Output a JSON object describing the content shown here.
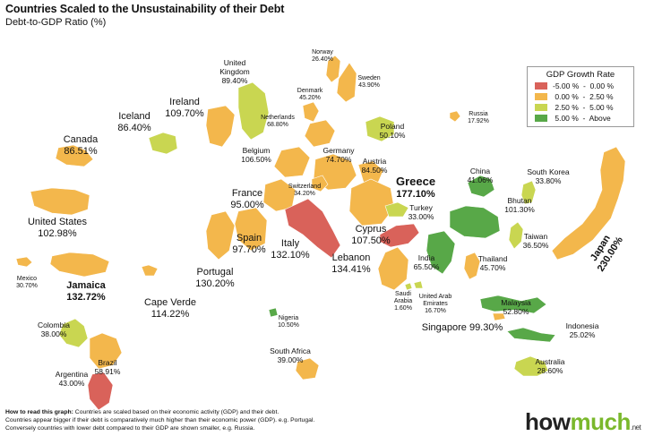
{
  "title": "Countries Scaled to the Unsustainability of their Debt",
  "subtitle": "Debt-to-GDP Ratio (%)",
  "colors": {
    "negative": "#d9625a",
    "low": "#f3b74c",
    "mid": "#c9d651",
    "high": "#58a848"
  },
  "legend": {
    "title": "GDP Growth Rate",
    "items": [
      {
        "label": "-5.00 %  -  0.00 %",
        "color": "#d9625a"
      },
      {
        "label": " 0.00 %  -  2.50 %",
        "color": "#f3b74c"
      },
      {
        "label": " 2.50 %  -  5.00 %",
        "color": "#c9d651"
      },
      {
        "label": " 5.00 %  -  Above",
        "color": "#58a848"
      }
    ]
  },
  "countries": [
    {
      "name": "Canada",
      "value": "86.51%",
      "growth": "low"
    },
    {
      "name": "United States",
      "value": "102.98%",
      "growth": "low"
    },
    {
      "name": "Mexico",
      "value": "30.70%",
      "growth": "low"
    },
    {
      "name": "Jamaica",
      "value": "132.72%",
      "growth": "low"
    },
    {
      "name": "Colombia",
      "value": "38.00%",
      "growth": "mid"
    },
    {
      "name": "Brazil",
      "value": "58.91%",
      "growth": "low"
    },
    {
      "name": "Argentina",
      "value": "43.00%",
      "growth": "negative"
    },
    {
      "name": "Cape Verde",
      "value": "114.22%",
      "growth": "low"
    },
    {
      "name": "Iceland",
      "value": "86.40%",
      "growth": "mid"
    },
    {
      "name": "Ireland",
      "value": "109.70%",
      "growth": "low"
    },
    {
      "name": "United Kingdom",
      "value": "89.40%",
      "growth": "mid"
    },
    {
      "name": "Norway",
      "value": "26.40%",
      "growth": "low"
    },
    {
      "name": "Sweden",
      "value": "43.90%",
      "growth": "low"
    },
    {
      "name": "Denmark",
      "value": "45.20%",
      "growth": "low"
    },
    {
      "name": "Netherlands",
      "value": "68.80%",
      "growth": "low"
    },
    {
      "name": "Belgium",
      "value": "106.50%",
      "growth": "low"
    },
    {
      "name": "France",
      "value": "95.00%",
      "growth": "low"
    },
    {
      "name": "Spain",
      "value": "97.70%",
      "growth": "low"
    },
    {
      "name": "Portugal",
      "value": "130.20%",
      "growth": "low"
    },
    {
      "name": "Germany",
      "value": "74.70%",
      "growth": "low"
    },
    {
      "name": "Austria",
      "value": "84.50%",
      "growth": "low"
    },
    {
      "name": "Switzerland",
      "value": "34.20%",
      "growth": "low"
    },
    {
      "name": "Poland",
      "value": "50.10%",
      "growth": "mid"
    },
    {
      "name": "Russia",
      "value": "17.92%",
      "growth": "low"
    },
    {
      "name": "Greece",
      "value": "177.10%",
      "growth": "low"
    },
    {
      "name": "Italy",
      "value": "132.10%",
      "growth": "negative"
    },
    {
      "name": "Turkey",
      "value": "33.00%",
      "growth": "mid"
    },
    {
      "name": "Cyprus",
      "value": "107.50%",
      "growth": "negative"
    },
    {
      "name": "Lebanon",
      "value": "134.41%",
      "growth": "low"
    },
    {
      "name": "Saudi Arabia",
      "value": "1.60%",
      "growth": "mid"
    },
    {
      "name": "United Arab Emirates",
      "value": "16.70%",
      "growth": "mid"
    },
    {
      "name": "Nigeria",
      "value": "10.50%",
      "growth": "high"
    },
    {
      "name": "South Africa",
      "value": "39.00%",
      "growth": "low"
    },
    {
      "name": "China",
      "value": "41.06%",
      "growth": "high"
    },
    {
      "name": "Bhutan",
      "value": "101.30%",
      "growth": "high"
    },
    {
      "name": "South Korea",
      "value": "33.80%",
      "growth": "mid"
    },
    {
      "name": "Taiwan",
      "value": "36.50%",
      "growth": "mid"
    },
    {
      "name": "India",
      "value": "65.50%",
      "growth": "high"
    },
    {
      "name": "Thailand",
      "value": "45.70%",
      "growth": "low"
    },
    {
      "name": "Malaysia",
      "value": "52.80%",
      "growth": "high"
    },
    {
      "name": "Singapore",
      "value": "99.30%",
      "growth": "low"
    },
    {
      "name": "Indonesia",
      "value": "25.02%",
      "growth": "high"
    },
    {
      "name": "Australia",
      "value": "28.60%",
      "growth": "mid"
    },
    {
      "name": "Japan",
      "value": "230.00%",
      "growth": "low"
    }
  ],
  "footnote": {
    "heading": "How to read this graph:",
    "line1": " Countries are scaled based on their economic activity (GDP) and their debt.",
    "line2": "Countries appear bigger if their debt is comparatively much higher than their economic power (GDP). e.g. Portugal.",
    "line3": "Conversely countries with lower debt compared to their GDP are shown smaller, e.g. Russia."
  },
  "logo": {
    "how": "how",
    "much": "much",
    "tld": ".net"
  }
}
